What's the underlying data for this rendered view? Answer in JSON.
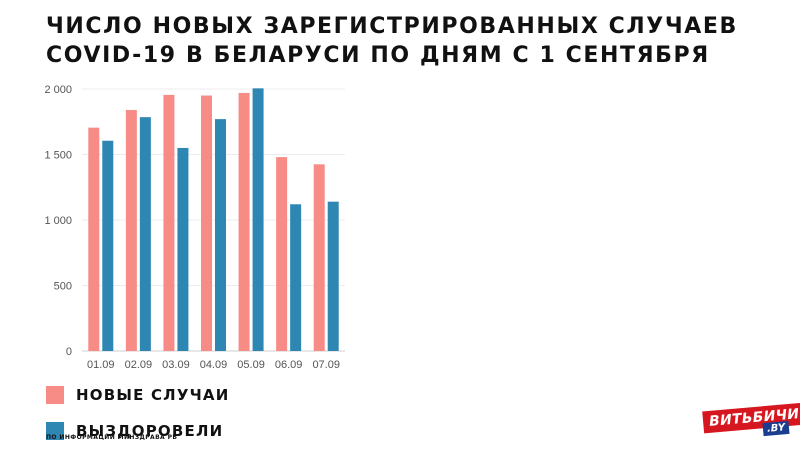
{
  "title": {
    "line1": "ЧИСЛО НОВЫХ ЗАРЕГИСТРИРОВАННЫХ СЛУЧАЕВ",
    "line2": "COVID-19 В БЕЛАРУСИ ПО ДНЯМ С 1 СЕНТЯБРЯ"
  },
  "chart_data": {
    "type": "bar",
    "categories": [
      "01.09",
      "02.09",
      "03.09",
      "04.09",
      "05.09",
      "06.09",
      "07.09"
    ],
    "series": [
      {
        "name": "НОВЫЕ СЛУЧАИ",
        "color": "#f78b85",
        "values": [
          1705,
          1840,
          1955,
          1950,
          1970,
          1480,
          1425
        ]
      },
      {
        "name": "ВЫЗДОРОВЕЛИ",
        "color": "#2e86b3",
        "values": [
          1605,
          1785,
          1550,
          1770,
          2005,
          1120,
          1140
        ]
      }
    ],
    "y_ticks": [
      0,
      500,
      1000,
      1500,
      2000
    ],
    "y_tick_labels": [
      "0",
      "500",
      "1 000",
      "1 500",
      "2 000"
    ],
    "ylim": [
      0,
      2000
    ],
    "grid": true,
    "legend_position": "bottom-left"
  },
  "legend": [
    {
      "label": "НОВЫЕ СЛУЧАИ",
      "color": "#f78b85"
    },
    {
      "label": "ВЫЗДОРОВЕЛИ",
      "color": "#2e86b3"
    }
  ],
  "source": "ПО ИНФОРМАЦИИ МИНЗДРАВА РБ",
  "logo": {
    "main": "ВИТЬБИЧИ",
    "sub": ".BY"
  }
}
